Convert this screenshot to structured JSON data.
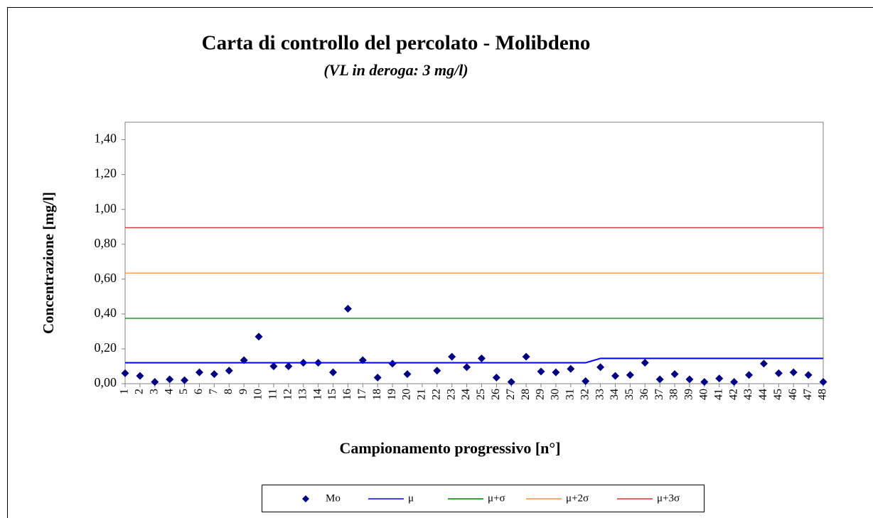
{
  "chart_data": {
    "type": "line",
    "title": "Carta di controllo del percolato - Molibdeno",
    "subtitle": "(VL in deroga: 3 mg/l)",
    "y_label": "Concentrazione [mg/l]",
    "x_label": "Campionamento progressivo [n°]",
    "categories": [
      "1",
      "2",
      "3",
      "4",
      "5",
      "6",
      "7",
      "8",
      "9",
      "10",
      "11",
      "12",
      "13",
      "14",
      "15",
      "16",
      "17",
      "18",
      "19",
      "20",
      "21",
      "22",
      "23",
      "24",
      "25",
      "26",
      "27",
      "28",
      "29",
      "30",
      "31",
      "32",
      "33",
      "34",
      "35",
      "36",
      "37",
      "38",
      "39",
      "40",
      "41",
      "42",
      "43",
      "44",
      "45",
      "46",
      "47",
      "48"
    ],
    "ylim": [
      0,
      1.5
    ],
    "yticks": [
      {
        "value": 0,
        "label": "0,00"
      },
      {
        "value": 0.2,
        "label": "0,20"
      },
      {
        "value": 0.4,
        "label": "0,40"
      },
      {
        "value": 0.6,
        "label": "0,60"
      },
      {
        "value": 0.8,
        "label": "0,80"
      },
      {
        "value": 1.0,
        "label": "1,00"
      },
      {
        "value": 1.2,
        "label": "1,20"
      },
      {
        "value": 1.4,
        "label": "1,40"
      }
    ],
    "legend": "bottom",
    "series": [
      {
        "name": "Mo",
        "color": "#000080",
        "mode": "markers",
        "values": [
          0.06,
          0.045,
          0.01,
          0.025,
          0.02,
          0.065,
          0.055,
          0.075,
          0.135,
          0.27,
          0.1,
          0.1,
          0.12,
          0.12,
          0.065,
          0.43,
          0.135,
          0.035,
          0.115,
          0.055,
          null,
          0.075,
          0.155,
          0.095,
          0.145,
          0.035,
          0.01,
          0.155,
          0.07,
          0.065,
          0.085,
          0.015,
          0.095,
          0.045,
          0.05,
          0.12,
          0.025,
          0.055,
          0.025,
          0.01,
          0.03,
          0.01,
          0.05,
          0.115,
          0.06,
          0.065,
          0.05,
          0.01
        ]
      },
      {
        "name": "μ",
        "color": "#0000ff",
        "mode": "lines",
        "values": [
          0.12,
          0.12,
          0.12,
          0.12,
          0.12,
          0.12,
          0.12,
          0.12,
          0.12,
          0.12,
          0.12,
          0.12,
          0.12,
          0.12,
          0.12,
          0.12,
          0.12,
          0.12,
          0.12,
          0.12,
          0.12,
          0.12,
          0.12,
          0.12,
          0.12,
          0.12,
          0.12,
          0.12,
          0.12,
          0.12,
          0.12,
          0.12,
          0.145,
          0.145,
          0.145,
          0.145,
          0.145,
          0.145,
          0.145,
          0.145,
          0.145,
          0.145,
          0.145,
          0.145,
          0.145,
          0.145,
          0.145,
          0.145
        ]
      },
      {
        "name": "μ+σ",
        "color": "#008000",
        "mode": "lines",
        "values": [
          0.375,
          0.375,
          0.375,
          0.375,
          0.375,
          0.375,
          0.375,
          0.375,
          0.375,
          0.375,
          0.375,
          0.375,
          0.375,
          0.375,
          0.375,
          0.375,
          0.375,
          0.375,
          0.375,
          0.375,
          0.375,
          0.375,
          0.375,
          0.375,
          0.375,
          0.375,
          0.375,
          0.375,
          0.375,
          0.375,
          0.375,
          0.375,
          0.375,
          0.375,
          0.375,
          0.375,
          0.375,
          0.375,
          0.375,
          0.375,
          0.375,
          0.375,
          0.375,
          0.375,
          0.375,
          0.375,
          0.375,
          0.375
        ]
      },
      {
        "name": "μ+2σ",
        "color": "#ff8c40",
        "mode": "lines",
        "values": [
          0.635,
          0.635,
          0.635,
          0.635,
          0.635,
          0.635,
          0.635,
          0.635,
          0.635,
          0.635,
          0.635,
          0.635,
          0.635,
          0.635,
          0.635,
          0.635,
          0.635,
          0.635,
          0.635,
          0.635,
          0.635,
          0.635,
          0.635,
          0.635,
          0.635,
          0.635,
          0.635,
          0.635,
          0.635,
          0.635,
          0.635,
          0.635,
          0.635,
          0.635,
          0.635,
          0.635,
          0.635,
          0.635,
          0.635,
          0.635,
          0.635,
          0.635,
          0.635,
          0.635,
          0.635,
          0.635,
          0.635,
          0.635
        ]
      },
      {
        "name": "μ+3σ",
        "color": "#e03030",
        "mode": "lines",
        "values": [
          0.895,
          0.895,
          0.895,
          0.895,
          0.895,
          0.895,
          0.895,
          0.895,
          0.895,
          0.895,
          0.895,
          0.895,
          0.895,
          0.895,
          0.895,
          0.895,
          0.895,
          0.895,
          0.895,
          0.895,
          0.895,
          0.895,
          0.895,
          0.895,
          0.895,
          0.895,
          0.895,
          0.895,
          0.895,
          0.895,
          0.895,
          0.895,
          0.895,
          0.895,
          0.895,
          0.895,
          0.895,
          0.895,
          0.895,
          0.895,
          0.895,
          0.895,
          0.895,
          0.895,
          0.895,
          0.895,
          0.895,
          0.895
        ]
      }
    ]
  }
}
